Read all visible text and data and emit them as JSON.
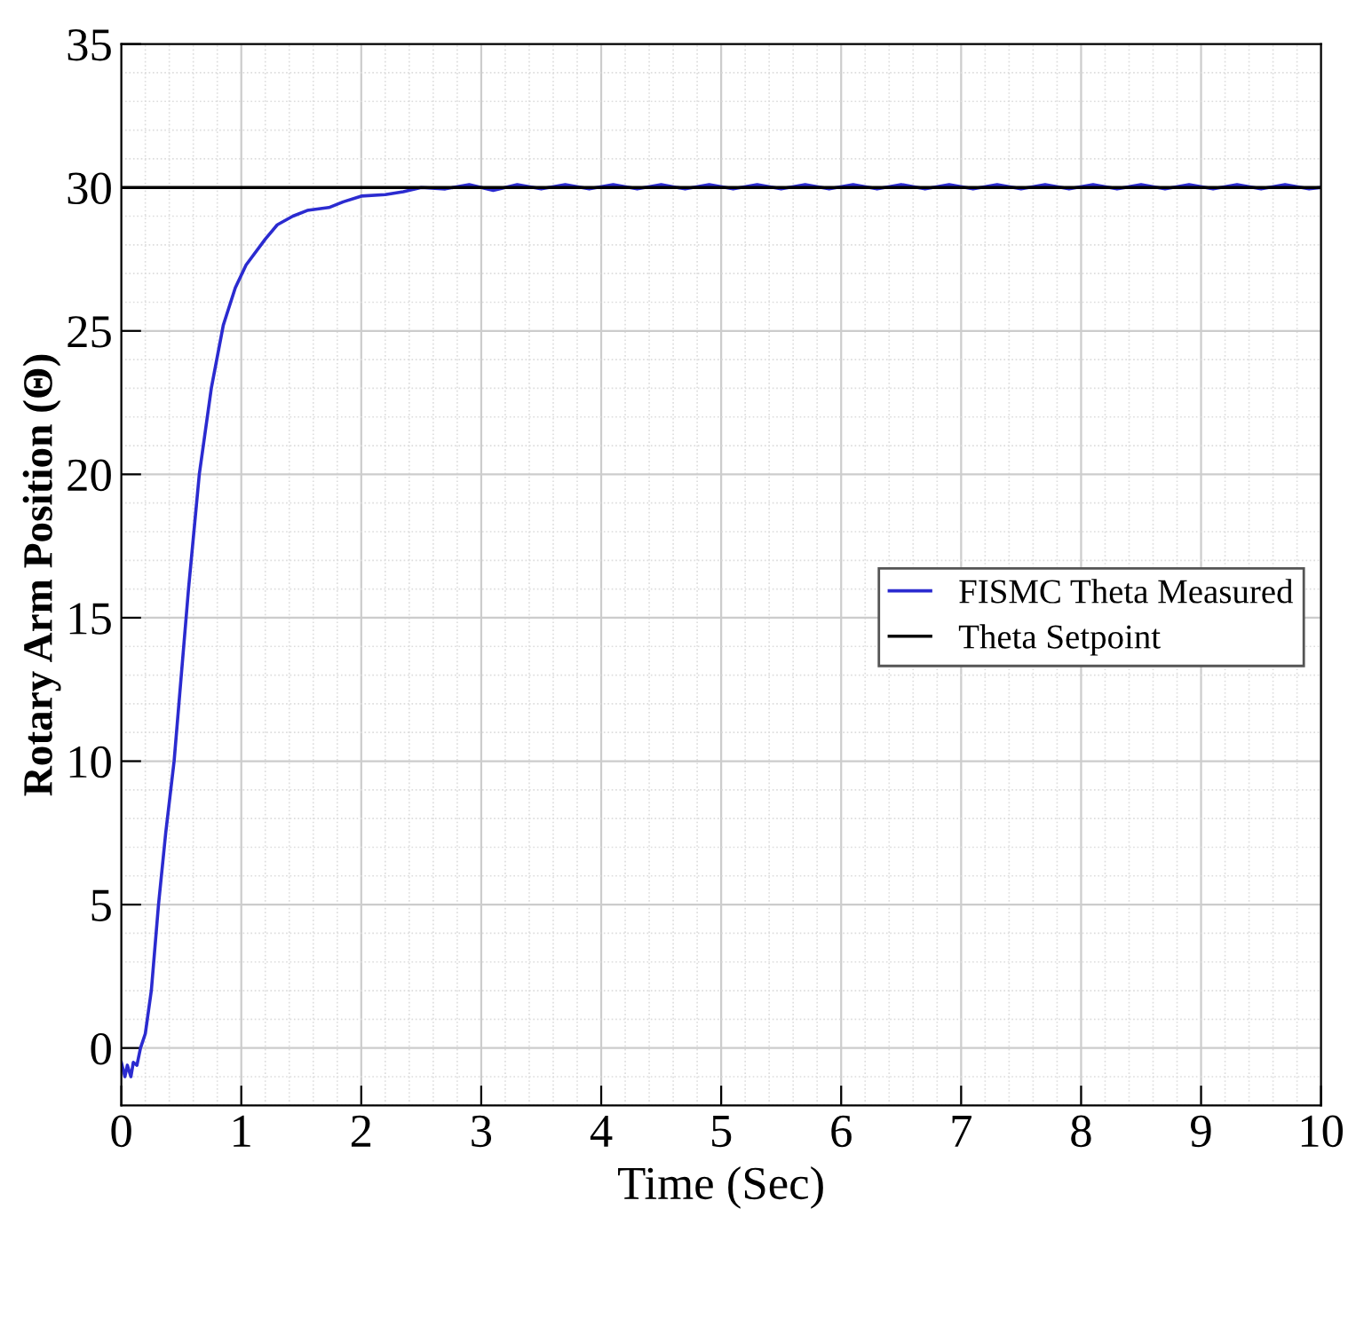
{
  "chart_data": {
    "type": "line",
    "xlabel": "Time (Sec)",
    "ylabel": "Rotary Arm Position (Θ)",
    "xlim": [
      0,
      10
    ],
    "ylim": [
      -2,
      35
    ],
    "xticks": [
      0,
      1,
      2,
      3,
      4,
      5,
      6,
      7,
      8,
      9,
      10
    ],
    "yticks": [
      0,
      5,
      10,
      15,
      20,
      25,
      30,
      35
    ],
    "grid": true,
    "legend": "right",
    "line_style": "solid",
    "series": [
      {
        "name": "FISMC Theta Measured",
        "color": "#2b2bd0",
        "x": [
          0,
          0.03,
          0.05,
          0.08,
          0.1,
          0.13,
          0.16,
          0.2,
          0.25,
          0.31,
          0.37,
          0.44,
          0.5,
          0.56,
          0.65,
          0.75,
          0.85,
          0.95,
          1.04,
          1.2,
          1.3,
          1.43,
          1.55,
          1.73,
          1.85,
          2.0,
          2.2,
          2.35,
          2.5,
          2.7,
          2.9,
          3.1,
          3.3,
          3.5,
          3.7,
          3.9,
          4.1,
          4.3,
          4.5,
          4.7,
          4.9,
          5.1,
          5.3,
          5.5,
          5.7,
          5.9,
          6.1,
          6.3,
          6.5,
          6.7,
          6.9,
          7.1,
          7.3,
          7.5,
          7.7,
          7.9,
          8.1,
          8.3,
          8.5,
          8.7,
          8.9,
          9.1,
          9.3,
          9.5,
          9.7,
          9.9,
          10
        ],
        "values": [
          -0.5,
          -1,
          -0.6,
          -1,
          -0.5,
          -0.6,
          0,
          0.5,
          2,
          5,
          7.5,
          10,
          13,
          16,
          20,
          23,
          25.2,
          26.5,
          27.3,
          28.2,
          28.7,
          29,
          29.2,
          29.3,
          29.5,
          29.7,
          29.75,
          29.85,
          30,
          29.95,
          30.1,
          29.9,
          30.1,
          29.95,
          30.1,
          29.95,
          30.1,
          29.95,
          30.1,
          29.95,
          30.1,
          29.95,
          30.1,
          29.95,
          30.1,
          29.95,
          30.1,
          29.95,
          30.1,
          29.95,
          30.1,
          29.95,
          30.1,
          29.95,
          30.1,
          29.95,
          30.1,
          29.95,
          30.1,
          29.95,
          30.1,
          29.95,
          30.1,
          29.95,
          30.1,
          29.95,
          30
        ]
      },
      {
        "name": "Theta Setpoint",
        "color": "#000000",
        "x": [
          0,
          10
        ],
        "values": [
          30,
          30
        ]
      }
    ]
  }
}
